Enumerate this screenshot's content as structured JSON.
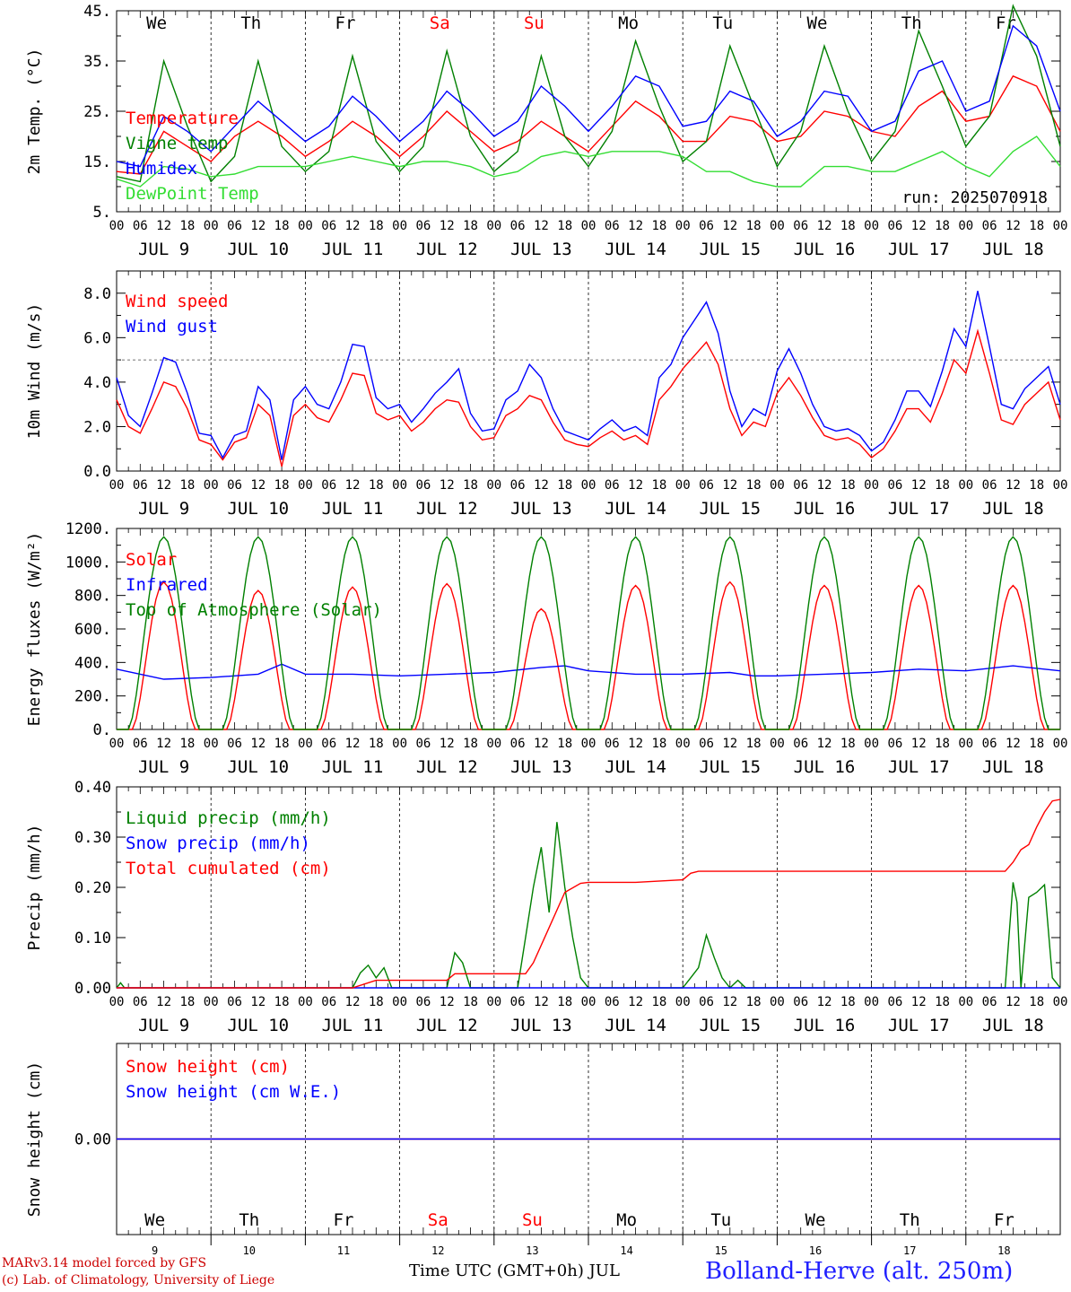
{
  "run_label": "run: 2025070918",
  "hour_tick_labels": [
    "00",
    "06",
    "12",
    "18"
  ],
  "month": "JUL",
  "days": [
    {
      "num": "9",
      "weekday": "We",
      "weekend": false
    },
    {
      "num": "10",
      "weekday": "Th",
      "weekend": false
    },
    {
      "num": "11",
      "weekday": "Fr",
      "weekend": false
    },
    {
      "num": "12",
      "weekday": "Sa",
      "weekend": true
    },
    {
      "num": "13",
      "weekday": "Su",
      "weekend": true
    },
    {
      "num": "14",
      "weekday": "Mo",
      "weekend": false
    },
    {
      "num": "15",
      "weekday": "Tu",
      "weekend": false
    },
    {
      "num": "16",
      "weekday": "We",
      "weekend": false
    },
    {
      "num": "17",
      "weekday": "Th",
      "weekend": false
    },
    {
      "num": "18",
      "weekday": "Fr",
      "weekend": false
    }
  ],
  "colors": {
    "red": "#ff0000",
    "blue": "#0000ff",
    "green": "#008000",
    "lightgreen": "#33dd33",
    "darkred": "#cc0000",
    "title_blue": "#2020ff"
  },
  "footer": {
    "model_line": "MARv3.14 model forced by GFS",
    "credit_line": "(c) Lab. of Climatology, University of Liege",
    "xaxis_title": "Time UTC (GMT+0h) JUL",
    "station": "Bolland-Herve (alt. 250m)"
  },
  "chart_data": [
    {
      "type": "line",
      "ylabel": "2m Temp. (°C)",
      "ylim": [
        5,
        45
      ],
      "yticks": [
        "5.",
        "15.",
        "25.",
        "35.",
        "45."
      ],
      "x_unit": "hours since 2025-07-09 00 UTC",
      "xlim": [
        0,
        240
      ],
      "grid": "vertical dashed day lines",
      "legend_position": "inside left",
      "series": [
        {
          "name": "Temperature",
          "color": "#ff0000",
          "x": [
            0,
            6,
            12,
            18,
            24,
            30,
            36,
            42,
            48,
            54,
            60,
            66,
            72,
            78,
            84,
            90,
            96,
            102,
            108,
            114,
            120,
            126,
            132,
            138,
            144,
            150,
            156,
            162,
            168,
            174,
            180,
            186,
            192,
            198,
            204,
            210,
            216,
            222,
            228,
            234,
            240
          ],
          "y": [
            13,
            12.5,
            21,
            18,
            15,
            20,
            23,
            20,
            16,
            19,
            23,
            20,
            16,
            20,
            25,
            21,
            17,
            19,
            23,
            20,
            17,
            22,
            27,
            24,
            19,
            19,
            24,
            23,
            19,
            20,
            25,
            24,
            21,
            20,
            26,
            29,
            23,
            24,
            32,
            30,
            21
          ]
        },
        {
          "name": "Vigne temp",
          "color": "#008000",
          "x": [
            0,
            6,
            12,
            18,
            24,
            30,
            36,
            42,
            48,
            54,
            60,
            66,
            72,
            78,
            84,
            90,
            96,
            102,
            108,
            114,
            120,
            126,
            132,
            138,
            144,
            150,
            156,
            162,
            168,
            174,
            180,
            186,
            192,
            198,
            204,
            210,
            216,
            222,
            228,
            234,
            240
          ],
          "y": [
            12,
            11,
            35,
            22,
            11,
            16,
            35,
            18,
            13,
            17,
            36,
            19,
            13,
            18,
            37,
            20,
            13,
            17,
            36,
            20,
            14,
            21,
            39,
            26,
            15,
            19,
            38,
            26,
            14,
            21,
            38,
            25,
            15,
            21,
            41,
            30,
            18,
            24,
            46,
            36,
            18
          ]
        },
        {
          "name": "Humidex",
          "color": "#0000ff",
          "x": [
            0,
            6,
            12,
            18,
            24,
            30,
            36,
            42,
            48,
            54,
            60,
            66,
            72,
            78,
            84,
            90,
            96,
            102,
            108,
            114,
            120,
            126,
            132,
            138,
            144,
            150,
            156,
            162,
            168,
            174,
            180,
            186,
            192,
            198,
            204,
            210,
            216,
            222,
            228,
            234,
            240
          ],
          "y": [
            15,
            14,
            24,
            21,
            17,
            22,
            27,
            23,
            19,
            22,
            28,
            24,
            19,
            23,
            29,
            25,
            20,
            23,
            30,
            26,
            21,
            26,
            32,
            30,
            22,
            23,
            29,
            27,
            20,
            23,
            29,
            28,
            21,
            23,
            33,
            35,
            25,
            27,
            42,
            38,
            25
          ]
        },
        {
          "name": "DewPoint Temp",
          "color": "#33dd33",
          "x": [
            0,
            6,
            12,
            18,
            24,
            30,
            36,
            42,
            48,
            54,
            60,
            66,
            72,
            78,
            84,
            90,
            96,
            102,
            108,
            114,
            120,
            126,
            132,
            138,
            144,
            150,
            156,
            162,
            168,
            174,
            180,
            186,
            192,
            198,
            204,
            210,
            216,
            222,
            228,
            234,
            240
          ],
          "y": [
            11.5,
            10,
            14,
            13.5,
            12,
            12.5,
            14,
            14,
            14,
            15,
            16,
            15,
            14,
            15,
            15,
            14,
            12,
            13,
            16,
            17,
            16,
            17,
            17,
            17,
            16,
            13,
            13,
            11,
            10,
            10,
            14,
            14,
            13,
            13,
            15,
            17,
            14,
            12,
            17,
            20,
            14
          ]
        }
      ]
    },
    {
      "type": "line",
      "ylabel": "10m Wind (m/s)",
      "ylim": [
        0,
        9
      ],
      "yticks": [
        "0.0",
        "2.0",
        "4.0",
        "6.0",
        "8.0"
      ],
      "reference_line": 5,
      "xlim": [
        0,
        240
      ],
      "legend_position": "inside left",
      "series": [
        {
          "name": "Wind speed",
          "color": "#ff0000",
          "x": [
            0,
            3,
            6,
            9,
            12,
            15,
            18,
            21,
            24,
            27,
            30,
            33,
            36,
            39,
            42,
            45,
            48,
            51,
            54,
            57,
            60,
            63,
            66,
            69,
            72,
            75,
            78,
            81,
            84,
            87,
            90,
            93,
            96,
            99,
            102,
            105,
            108,
            111,
            114,
            117,
            120,
            123,
            126,
            129,
            132,
            135,
            138,
            141,
            144,
            147,
            150,
            153,
            156,
            159,
            162,
            165,
            168,
            171,
            174,
            177,
            180,
            183,
            186,
            189,
            192,
            195,
            198,
            201,
            204,
            207,
            210,
            213,
            216,
            219,
            222,
            225,
            228,
            231,
            234,
            237,
            240
          ],
          "y": [
            3.2,
            2,
            1.7,
            2.8,
            4,
            3.8,
            2.8,
            1.4,
            1.2,
            0.5,
            1.3,
            1.5,
            3,
            2.5,
            0.2,
            2.5,
            3,
            2.4,
            2.2,
            3.2,
            4.4,
            4.3,
            2.6,
            2.3,
            2.5,
            1.8,
            2.2,
            2.8,
            3.2,
            3.1,
            2,
            1.4,
            1.5,
            2.5,
            2.8,
            3.4,
            3.2,
            2.2,
            1.4,
            1.2,
            1.1,
            1.5,
            1.8,
            1.4,
            1.6,
            1.2,
            3.2,
            3.8,
            4.6,
            5.2,
            5.8,
            4.8,
            2.8,
            1.6,
            2.2,
            2,
            3.5,
            4.2,
            3.4,
            2.4,
            1.6,
            1.4,
            1.5,
            1.2,
            0.6,
            1,
            1.8,
            2.8,
            2.8,
            2.2,
            3.5,
            5,
            4.4,
            6.3,
            4.4,
            2.3,
            2.1,
            3,
            3.5,
            4,
            2.3
          ]
        },
        {
          "name": "Wind gust",
          "color": "#0000ff",
          "x": [
            0,
            3,
            6,
            9,
            12,
            15,
            18,
            21,
            24,
            27,
            30,
            33,
            36,
            39,
            42,
            45,
            48,
            51,
            54,
            57,
            60,
            63,
            66,
            69,
            72,
            75,
            78,
            81,
            84,
            87,
            90,
            93,
            96,
            99,
            102,
            105,
            108,
            111,
            114,
            117,
            120,
            123,
            126,
            129,
            132,
            135,
            138,
            141,
            144,
            147,
            150,
            153,
            156,
            159,
            162,
            165,
            168,
            171,
            174,
            177,
            180,
            183,
            186,
            189,
            192,
            195,
            198,
            201,
            204,
            207,
            210,
            213,
            216,
            219,
            222,
            225,
            228,
            231,
            234,
            237,
            240
          ],
          "y": [
            4.2,
            2.5,
            2,
            3.5,
            5.1,
            4.9,
            3.5,
            1.7,
            1.6,
            0.6,
            1.6,
            1.8,
            3.8,
            3.2,
            0.5,
            3.2,
            3.8,
            3,
            2.8,
            4,
            5.7,
            5.6,
            3.3,
            2.8,
            3,
            2.2,
            2.8,
            3.5,
            4,
            4.6,
            2.6,
            1.8,
            1.9,
            3.2,
            3.6,
            4.8,
            4.2,
            2.8,
            1.8,
            1.6,
            1.4,
            1.9,
            2.3,
            1.8,
            2,
            1.6,
            4.2,
            4.8,
            6,
            6.8,
            7.6,
            6.2,
            3.6,
            2,
            2.8,
            2.5,
            4.5,
            5.5,
            4.4,
            3,
            2,
            1.8,
            1.9,
            1.6,
            0.9,
            1.3,
            2.3,
            3.6,
            3.6,
            2.9,
            4.5,
            6.4,
            5.6,
            8.1,
            5.6,
            3,
            2.8,
            3.7,
            4.2,
            4.7,
            3
          ]
        }
      ]
    },
    {
      "type": "line",
      "ylabel": "Energy fluxes (W/m²)",
      "ylim": [
        0,
        1200
      ],
      "yticks": [
        "0.",
        "200.",
        "400.",
        "600.",
        "800.",
        "1000.",
        "1200."
      ],
      "xlim": [
        0,
        240
      ],
      "legend_position": "inside left",
      "series": [
        {
          "name": "Solar",
          "color": "#ff0000",
          "daily_peaks": [
            880,
            830,
            850,
            870,
            720,
            860,
            880,
            860,
            860,
            860
          ],
          "peak_hour": 12,
          "day_length_hours": 16
        },
        {
          "name": "Infrared",
          "color": "#0000ff",
          "x": [
            0,
            12,
            24,
            36,
            42,
            48,
            60,
            72,
            84,
            96,
            108,
            114,
            120,
            132,
            144,
            156,
            162,
            168,
            180,
            192,
            204,
            216,
            228,
            240
          ],
          "y": [
            360,
            300,
            310,
            330,
            390,
            330,
            330,
            320,
            330,
            340,
            370,
            380,
            350,
            330,
            330,
            340,
            320,
            320,
            330,
            340,
            360,
            350,
            380,
            350
          ]
        },
        {
          "name": "Top of Atmosphere (Solar)",
          "color": "#008000",
          "daily_peaks": [
            1150,
            1150,
            1150,
            1150,
            1150,
            1150,
            1150,
            1150,
            1150,
            1150
          ],
          "peak_hour": 12,
          "day_length_hours": 18
        }
      ]
    },
    {
      "type": "line",
      "ylabel": "Precip (mm/h)",
      "ylim": [
        0,
        0.4
      ],
      "yticks": [
        "0.00",
        "0.10",
        "0.20",
        "0.30",
        "0.40"
      ],
      "xlim": [
        0,
        240
      ],
      "legend_position": "inside left",
      "series": [
        {
          "name": "Liquid precip (mm/h)",
          "color": "#008000",
          "x": [
            0,
            1,
            2,
            60,
            62,
            64,
            66,
            68,
            70,
            84,
            86,
            88,
            90,
            102,
            104,
            106,
            108,
            110,
            112,
            114,
            116,
            118,
            120,
            144,
            146,
            148,
            150,
            152,
            154,
            156,
            158,
            160,
            168,
            170,
            226,
            228,
            229,
            230,
            232,
            234,
            236,
            238,
            240
          ],
          "y": [
            0,
            0.01,
            0,
            0,
            0.03,
            0.045,
            0.02,
            0.04,
            0,
            0,
            0.07,
            0.05,
            0,
            0,
            0.1,
            0.2,
            0.28,
            0.15,
            0.33,
            0.2,
            0.1,
            0.02,
            0,
            0,
            0.02,
            0.04,
            0.105,
            0.06,
            0.02,
            0,
            0.015,
            0,
            0,
            0,
            0,
            0.21,
            0.17,
            0,
            0.18,
            0.19,
            0.205,
            0.02,
            0
          ]
        },
        {
          "name": "Snow precip (mm/h)",
          "color": "#0000ff",
          "x": [
            0,
            240
          ],
          "y": [
            0,
            0
          ]
        },
        {
          "name": "Total cumulated (cm)",
          "color": "#ff0000",
          "x": [
            0,
            60,
            66,
            70,
            84,
            86,
            88,
            104,
            106,
            110,
            114,
            118,
            120,
            132,
            144,
            146,
            148,
            160,
            226,
            228,
            230,
            232,
            234,
            236,
            238,
            240
          ],
          "y": [
            0,
            0,
            0.015,
            0.015,
            0.015,
            0.028,
            0.028,
            0.028,
            0.05,
            0.12,
            0.19,
            0.208,
            0.21,
            0.21,
            0.215,
            0.228,
            0.232,
            0.232,
            0.232,
            0.25,
            0.275,
            0.285,
            0.32,
            0.35,
            0.372,
            0.375
          ]
        }
      ]
    },
    {
      "type": "line",
      "ylabel": "Snow height (cm)",
      "ylim": [
        -0.01,
        0.01
      ],
      "yticks": [
        "0.00"
      ],
      "xlim": [
        0,
        240
      ],
      "legend_position": "inside left",
      "series": [
        {
          "name": "Snow height (cm)",
          "color": "#ff0000",
          "x": [
            0,
            240
          ],
          "y": [
            0,
            0
          ]
        },
        {
          "name": "Snow height (cm W.E.)",
          "color": "#0000ff",
          "x": [
            0,
            240
          ],
          "y": [
            0,
            0
          ]
        }
      ]
    }
  ]
}
